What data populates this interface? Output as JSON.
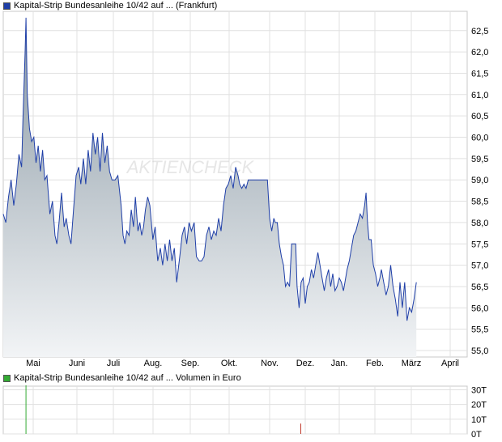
{
  "price_chart": {
    "legend": "Kapital-Strip Bundesanleihe 10/42 auf ... (Frankfurt)",
    "legend_color": "#1f3fa8"
  },
  "volume_chart": {
    "legend": "Kapital-Strip Bundesanleihe 10/42 auf ... Volumen in Euro",
    "legend_color": "#33aa33"
  },
  "watermark": "AKTIENCHECK",
  "chart_data": [
    {
      "type": "area",
      "title": "Kapital-Strip Bundesanleihe 10/42 auf ... (Frankfurt)",
      "x_ticks": [
        "Mai",
        "Juni",
        "Juli",
        "Aug.",
        "Sep.",
        "Okt.",
        "Nov.",
        "Dez.",
        "Jan.",
        "Feb.",
        "März",
        "April"
      ],
      "y_ticks": [
        "55,0",
        "55,5",
        "56,0",
        "56,5",
        "57,0",
        "57,5",
        "58,0",
        "58,5",
        "59,0",
        "59,5",
        "60,0",
        "60,5",
        "61,0",
        "61,5",
        "62,0",
        "62,5"
      ],
      "ylim": [
        55.0,
        62.8
      ],
      "grid": true,
      "line_color": "#1f3fa8",
      "series": [
        {
          "values": [
            [
              0.0,
              58.2
            ],
            [
              0.06,
              58.0
            ],
            [
              0.12,
              58.6
            ],
            [
              0.18,
              59.0
            ],
            [
              0.24,
              58.4
            ],
            [
              0.3,
              58.9
            ],
            [
              0.36,
              59.6
            ],
            [
              0.42,
              59.3
            ],
            [
              0.45,
              60.4
            ],
            [
              0.5,
              62.0
            ],
            [
              0.52,
              62.8
            ],
            [
              0.55,
              61.0
            ],
            [
              0.6,
              60.2
            ],
            [
              0.65,
              59.9
            ],
            [
              0.7,
              60.0
            ],
            [
              0.75,
              59.4
            ],
            [
              0.8,
              59.8
            ],
            [
              0.85,
              59.2
            ],
            [
              0.9,
              59.7
            ],
            [
              0.95,
              59.0
            ],
            [
              1.0,
              59.1
            ],
            [
              1.08,
              58.2
            ],
            [
              1.15,
              58.5
            ],
            [
              1.22,
              57.7
            ],
            [
              1.27,
              57.5
            ],
            [
              1.33,
              58.0
            ],
            [
              1.4,
              58.7
            ],
            [
              1.47,
              57.9
            ],
            [
              1.53,
              58.1
            ],
            [
              1.6,
              57.7
            ],
            [
              1.66,
              57.5
            ],
            [
              1.73,
              58.3
            ],
            [
              1.8,
              59.1
            ],
            [
              1.87,
              59.3
            ],
            [
              1.93,
              58.9
            ],
            [
              2.0,
              59.5
            ],
            [
              2.06,
              58.9
            ],
            [
              2.12,
              59.7
            ],
            [
              2.18,
              59.2
            ],
            [
              2.24,
              60.1
            ],
            [
              2.3,
              59.6
            ],
            [
              2.36,
              60.0
            ],
            [
              2.42,
              59.2
            ],
            [
              2.48,
              60.1
            ],
            [
              2.54,
              59.4
            ],
            [
              2.6,
              59.8
            ],
            [
              2.66,
              59.2
            ],
            [
              2.72,
              59.0
            ],
            [
              2.8,
              59.0
            ],
            [
              2.87,
              59.1
            ],
            [
              2.95,
              58.4
            ],
            [
              3.0,
              57.7
            ],
            [
              3.05,
              57.5
            ],
            [
              3.1,
              57.8
            ],
            [
              3.16,
              57.7
            ],
            [
              3.22,
              58.3
            ],
            [
              3.28,
              57.9
            ],
            [
              3.33,
              58.6
            ],
            [
              3.4,
              57.8
            ],
            [
              3.45,
              58.0
            ],
            [
              3.5,
              57.7
            ],
            [
              3.55,
              57.9
            ],
            [
              3.6,
              58.3
            ],
            [
              3.66,
              58.6
            ],
            [
              3.72,
              58.4
            ],
            [
              3.8,
              57.6
            ],
            [
              3.86,
              57.9
            ],
            [
              3.93,
              57.1
            ],
            [
              4.0,
              57.4
            ],
            [
              4.06,
              57.0
            ],
            [
              4.12,
              57.5
            ],
            [
              4.18,
              57.1
            ],
            [
              4.24,
              57.6
            ],
            [
              4.3,
              57.1
            ],
            [
              4.36,
              57.4
            ],
            [
              4.42,
              56.6
            ],
            [
              4.5,
              57.2
            ],
            [
              4.56,
              57.7
            ],
            [
              4.62,
              57.9
            ],
            [
              4.68,
              57.5
            ],
            [
              4.74,
              58.0
            ],
            [
              4.8,
              57.8
            ],
            [
              4.87,
              58.0
            ],
            [
              4.93,
              57.2
            ],
            [
              5.0,
              57.1
            ],
            [
              5.06,
              57.1
            ],
            [
              5.12,
              57.2
            ],
            [
              5.18,
              57.7
            ],
            [
              5.24,
              57.9
            ],
            [
              5.3,
              57.6
            ],
            [
              5.36,
              57.8
            ],
            [
              5.42,
              57.7
            ],
            [
              5.48,
              58.1
            ],
            [
              5.54,
              57.8
            ],
            [
              5.6,
              58.4
            ],
            [
              5.66,
              58.8
            ],
            [
              5.72,
              58.9
            ],
            [
              5.78,
              59.1
            ],
            [
              5.84,
              58.8
            ],
            [
              5.9,
              59.3
            ],
            [
              5.96,
              59.1
            ],
            [
              6.0,
              58.9
            ],
            [
              6.06,
              58.8
            ],
            [
              6.12,
              58.9
            ],
            [
              6.18,
              58.8
            ],
            [
              6.24,
              59.0
            ],
            [
              6.3,
              59.0
            ],
            [
              6.4,
              59.0
            ],
            [
              6.5,
              59.0
            ],
            [
              6.6,
              59.0
            ],
            [
              6.7,
              59.0
            ],
            [
              6.78,
              59.0
            ],
            [
              6.84,
              58.1
            ],
            [
              6.9,
              57.8
            ],
            [
              6.96,
              58.1
            ],
            [
              7.0,
              58.0
            ],
            [
              7.06,
              58.0
            ],
            [
              7.12,
              57.5
            ],
            [
              7.18,
              57.2
            ],
            [
              7.24,
              57.0
            ],
            [
              7.3,
              56.5
            ],
            [
              7.36,
              56.6
            ],
            [
              7.42,
              56.5
            ],
            [
              7.48,
              57.5
            ],
            [
              7.54,
              57.5
            ],
            [
              7.6,
              57.5
            ],
            [
              7.64,
              56.5
            ],
            [
              7.7,
              56.0
            ],
            [
              7.76,
              56.6
            ],
            [
              7.82,
              56.7
            ],
            [
              7.88,
              56.1
            ],
            [
              7.94,
              56.5
            ],
            [
              8.0,
              56.6
            ],
            [
              8.06,
              56.9
            ],
            [
              8.12,
              56.7
            ],
            [
              8.18,
              57.0
            ],
            [
              8.24,
              57.3
            ],
            [
              8.3,
              57.0
            ],
            [
              8.36,
              56.7
            ],
            [
              8.42,
              56.4
            ],
            [
              8.48,
              56.7
            ],
            [
              8.54,
              56.9
            ],
            [
              8.6,
              56.5
            ],
            [
              8.66,
              56.8
            ],
            [
              8.72,
              56.4
            ],
            [
              8.78,
              56.5
            ],
            [
              8.84,
              56.7
            ],
            [
              8.9,
              56.6
            ],
            [
              8.96,
              56.4
            ],
            [
              9.0,
              56.6
            ],
            [
              9.06,
              56.9
            ],
            [
              9.12,
              57.1
            ],
            [
              9.18,
              57.4
            ],
            [
              9.24,
              57.7
            ],
            [
              9.3,
              57.8
            ],
            [
              9.36,
              58.0
            ],
            [
              9.42,
              58.2
            ],
            [
              9.48,
              58.1
            ],
            [
              9.54,
              58.4
            ],
            [
              9.58,
              58.7
            ],
            [
              9.62,
              58.0
            ],
            [
              9.66,
              57.6
            ],
            [
              9.72,
              57.6
            ],
            [
              9.78,
              57.0
            ],
            [
              9.84,
              56.8
            ],
            [
              9.9,
              56.5
            ],
            [
              9.96,
              56.7
            ],
            [
              10.0,
              56.9
            ],
            [
              10.06,
              56.6
            ],
            [
              10.12,
              56.3
            ],
            [
              10.18,
              56.5
            ],
            [
              10.24,
              57.0
            ],
            [
              10.3,
              56.5
            ],
            [
              10.36,
              56.2
            ],
            [
              10.42,
              55.8
            ],
            [
              10.48,
              56.6
            ],
            [
              10.54,
              56.0
            ],
            [
              10.6,
              56.6
            ],
            [
              10.66,
              55.7
            ],
            [
              10.72,
              56.0
            ],
            [
              10.78,
              55.9
            ],
            [
              10.84,
              56.2
            ],
            [
              10.9,
              56.6
            ]
          ]
        }
      ]
    },
    {
      "type": "bar",
      "title": "Kapital-Strip Bundesanleihe 10/42 auf ... Volumen in Euro",
      "y_ticks": [
        "0T",
        "10T",
        "20T",
        "30T"
      ],
      "ylim": [
        0,
        33
      ],
      "grid": true,
      "series": [
        {
          "values": [
            [
              0.52,
              33
            ],
            [
              7.75,
              7
            ]
          ]
        }
      ]
    }
  ]
}
